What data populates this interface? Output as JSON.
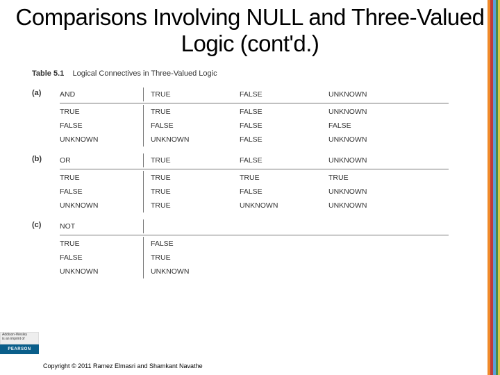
{
  "slide": {
    "title": "Comparisons Involving NULL and Three-Valued Logic (cont'd.)"
  },
  "table": {
    "number": "Table 5.1",
    "caption": "Logical Connectives in Three-Valued Logic",
    "groups": [
      {
        "label": "(a)",
        "operator": "AND",
        "headers": [
          "TRUE",
          "FALSE",
          "UNKNOWN"
        ],
        "rows": [
          {
            "op": "TRUE",
            "cells": [
              "TRUE",
              "FALSE",
              "UNKNOWN"
            ]
          },
          {
            "op": "FALSE",
            "cells": [
              "FALSE",
              "FALSE",
              "FALSE"
            ]
          },
          {
            "op": "UNKNOWN",
            "cells": [
              "UNKNOWN",
              "FALSE",
              "UNKNOWN"
            ]
          }
        ]
      },
      {
        "label": "(b)",
        "operator": "OR",
        "headers": [
          "TRUE",
          "FALSE",
          "UNKNOWN"
        ],
        "rows": [
          {
            "op": "TRUE",
            "cells": [
              "TRUE",
              "TRUE",
              "TRUE"
            ]
          },
          {
            "op": "FALSE",
            "cells": [
              "TRUE",
              "FALSE",
              "UNKNOWN"
            ]
          },
          {
            "op": "UNKNOWN",
            "cells": [
              "TRUE",
              "UNKNOWN",
              "UNKNOWN"
            ]
          }
        ]
      },
      {
        "label": "(c)",
        "operator": "NOT",
        "headers": [],
        "rows": [
          {
            "op": "TRUE",
            "cells": [
              "FALSE"
            ]
          },
          {
            "op": "FALSE",
            "cells": [
              "TRUE"
            ]
          },
          {
            "op": "UNKNOWN",
            "cells": [
              "UNKNOWN"
            ]
          }
        ]
      }
    ]
  },
  "footer": {
    "publisher_top": "Addison-Wesley",
    "publisher_sub": "is an imprint of",
    "publisher_brand": "PEARSON",
    "copyright": "Copyright © 2011 Ramez Elmasri and Shamkant Navathe"
  },
  "colors": {
    "stripes": [
      "#f08a2a",
      "#c03a3a",
      "#5aa0d8",
      "#4a8a4a",
      "#d8c948"
    ],
    "pearson": "#0a5e8a"
  }
}
